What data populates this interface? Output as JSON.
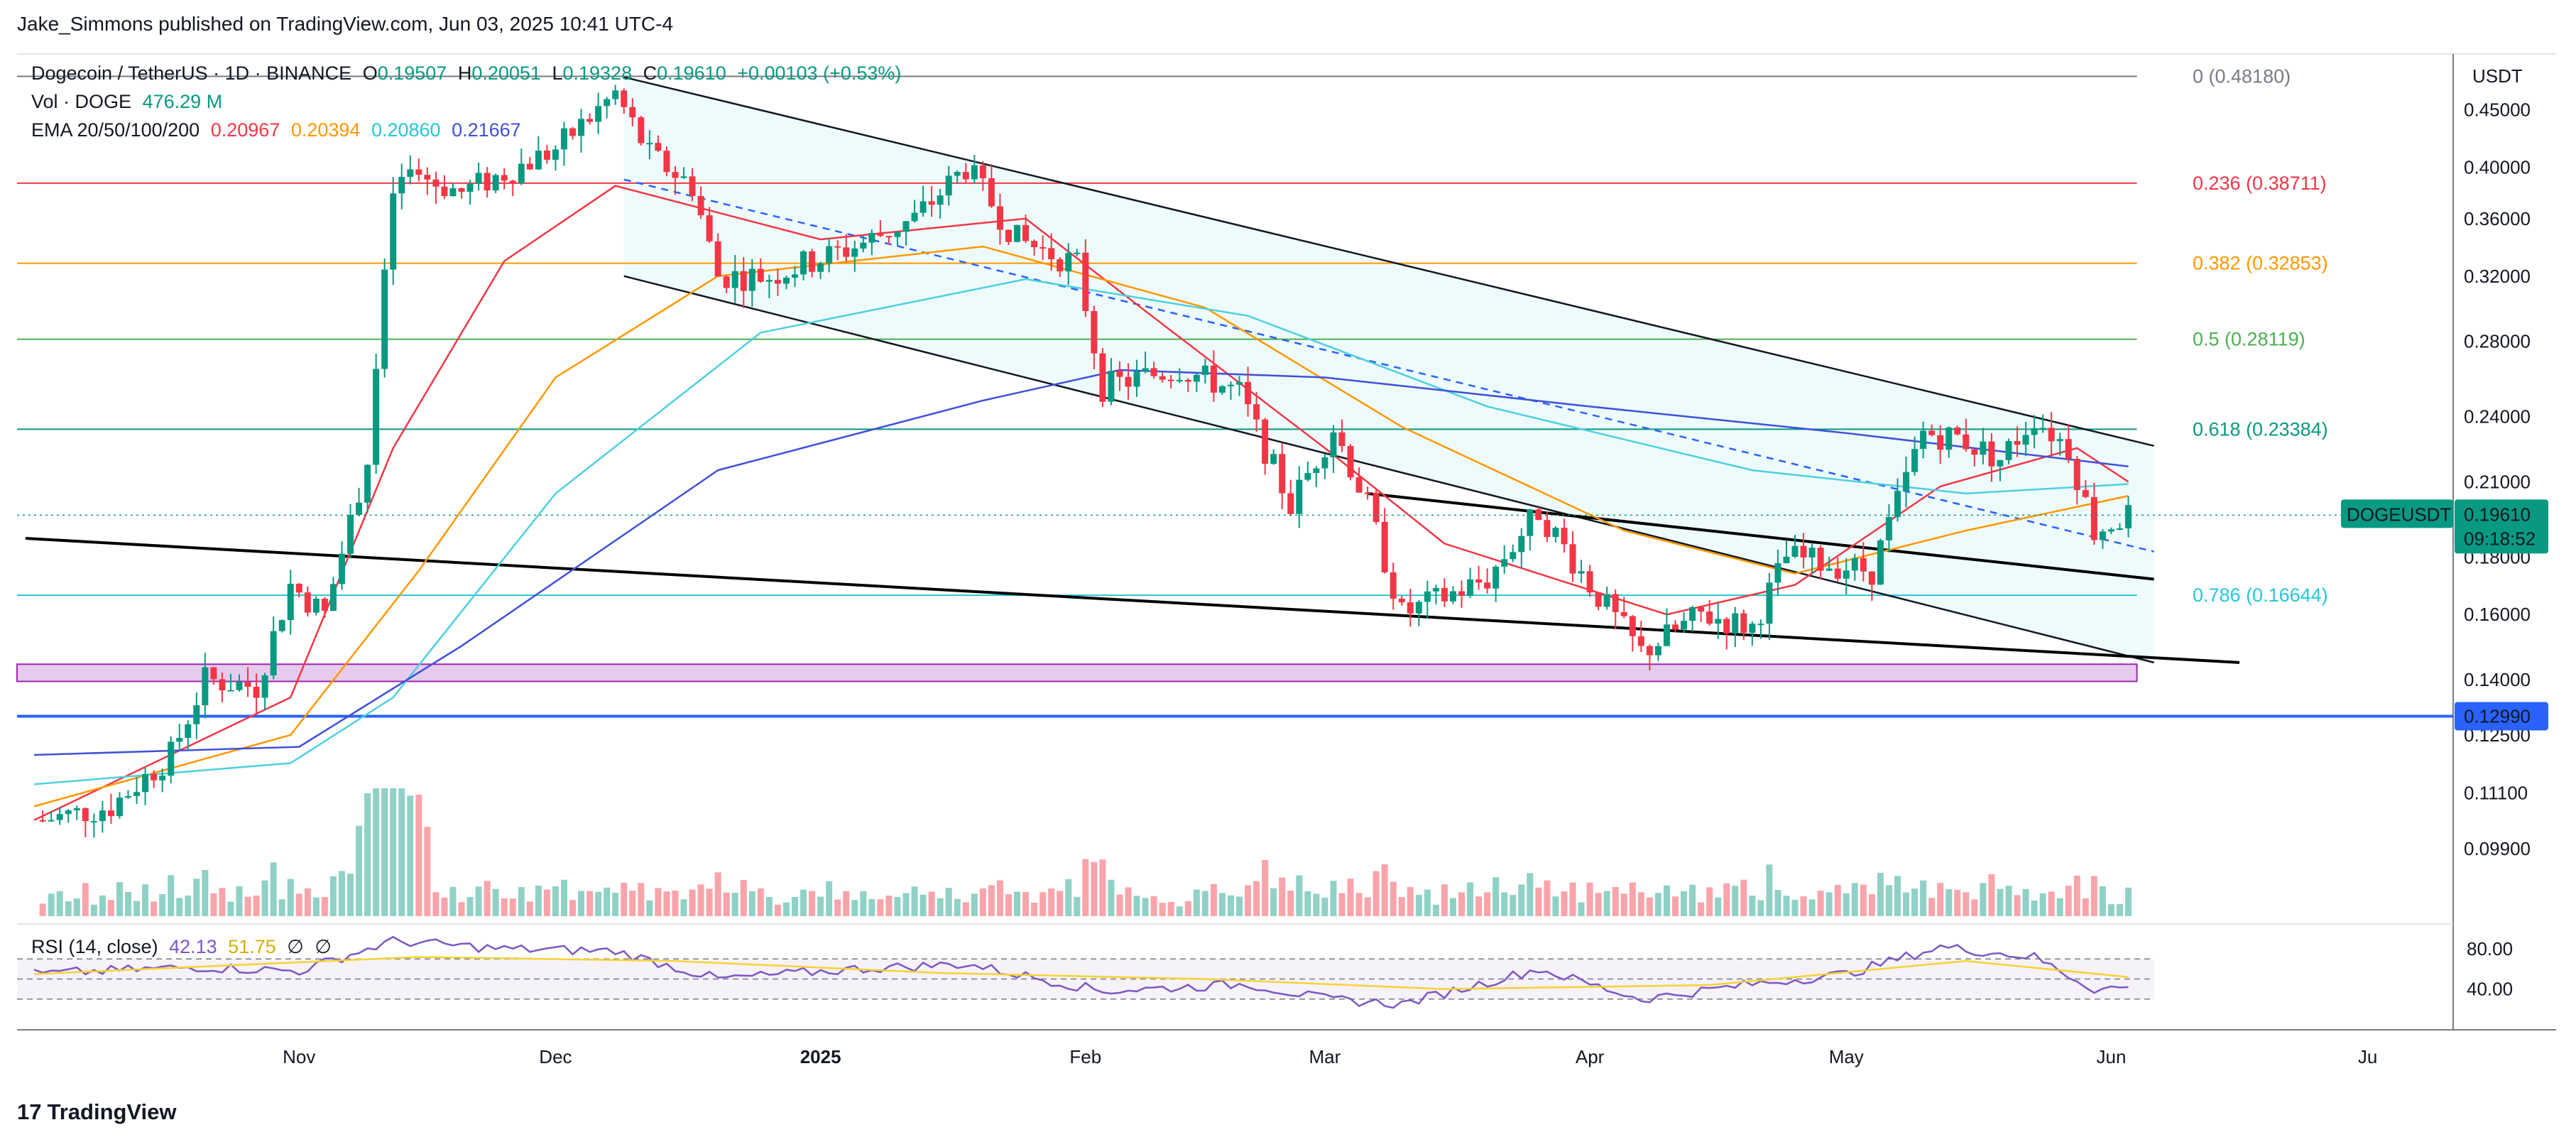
{
  "header": {
    "published": "Jake_Simmons published on TradingView.com, Jun 03, 2025 10:41 UTC-4"
  },
  "legend": {
    "symbol": "Dogecoin / TetherUS · 1D · BINANCE",
    "o_label": "O",
    "o": "0.19507",
    "h_label": "H",
    "h": "0.20051",
    "l_label": "L",
    "l": "0.19328",
    "c_label": "C",
    "c": "0.19610",
    "change": "+0.00103 (+0.53%)",
    "vol_label": "Vol · DOGE",
    "vol": "476.29 M",
    "ema_label": "EMA 20/50/100/200",
    "ema20": "0.20967",
    "ema50": "0.20394",
    "ema100": "0.20860",
    "ema200": "0.21667",
    "rsi_label": "RSI (14, close)",
    "rsi_value": "42.13",
    "rsi_ma": "51.75",
    "rsi_x1": "∅",
    "rsi_x2": "∅"
  },
  "currency": "USDT",
  "colors": {
    "up": "#089981",
    "down": "#f23645",
    "ema20": "#f23645",
    "ema50": "#ff9800",
    "ema100": "#4dd0e1",
    "ema200": "#3f51d8",
    "fib_0": "#787b86",
    "fib_236": "#f23645",
    "fib_382": "#ff9800",
    "fib_5": "#4caf50",
    "fib_618": "#089981",
    "fib_786": "#26c6da",
    "support": "#2962ff",
    "zone": "#e1bee7",
    "rsi_line": "#7e57c2",
    "rsi_ma": "#f7d234"
  },
  "tag": {
    "symbol": "DOGEUSDT",
    "price": "0.19610",
    "countdown": "09:18:52"
  },
  "support_tag": "0.12990",
  "footer": {
    "brand": "TradingView",
    "logo": "17"
  },
  "chart_data": {
    "type": "candlestick",
    "scale": "log",
    "ylim": [
      0.085,
      0.5
    ],
    "y_ticks": [
      "0.45000",
      "0.40000",
      "0.36000",
      "0.32000",
      "0.28000",
      "0.24000",
      "0.21000",
      "0.18000",
      "0.16000",
      "0.14000",
      "0.12500",
      "0.11100",
      "0.09900"
    ],
    "x_ticks": [
      "Nov",
      "Dec",
      "2025",
      "Feb",
      "Mar",
      "Apr",
      "May",
      "Jun",
      "Ju"
    ],
    "rsi_ticks": [
      "80.00",
      "40.00"
    ],
    "fib_levels": [
      {
        "label": "0 (0.48180)",
        "value": 0.4818,
        "color": "#787b86"
      },
      {
        "label": "0.236 (0.38711)",
        "value": 0.38711,
        "color": "#f23645"
      },
      {
        "label": "0.382 (0.32853)",
        "value": 0.32853,
        "color": "#ff9800"
      },
      {
        "label": "0.5 (0.28119)",
        "value": 0.28119,
        "color": "#4caf50"
      },
      {
        "label": "0.618 (0.23384)",
        "value": 0.23384,
        "color": "#089981"
      },
      {
        "label": "0.786 (0.16644)",
        "value": 0.16644,
        "color": "#26c6da"
      }
    ],
    "support_level": 0.1299,
    "zone": [
      0.1395,
      0.1445
    ],
    "last_price": 0.1961,
    "anchors": [
      {
        "d": "2024-10-02",
        "p": 0.105
      },
      {
        "d": "2024-10-10",
        "p": 0.108
      },
      {
        "d": "2024-10-17",
        "p": 0.12
      },
      {
        "d": "2024-10-21",
        "p": 0.14
      },
      {
        "d": "2024-10-27",
        "p": 0.138
      },
      {
        "d": "2024-10-31",
        "p": 0.17
      },
      {
        "d": "2024-11-04",
        "p": 0.16
      },
      {
        "d": "2024-11-09",
        "p": 0.22
      },
      {
        "d": "2024-11-12",
        "p": 0.38
      },
      {
        "d": "2024-11-14",
        "p": 0.395
      },
      {
        "d": "2024-11-20",
        "p": 0.38
      },
      {
        "d": "2024-11-25",
        "p": 0.395
      },
      {
        "d": "2024-12-01",
        "p": 0.415
      },
      {
        "d": "2024-12-08",
        "p": 0.465
      },
      {
        "d": "2024-12-12",
        "p": 0.41
      },
      {
        "d": "2024-12-17",
        "p": 0.385
      },
      {
        "d": "2024-12-20",
        "p": 0.32
      },
      {
        "d": "2024-12-26",
        "p": 0.32
      },
      {
        "d": "2025-01-05",
        "p": 0.34
      },
      {
        "d": "2025-01-12",
        "p": 0.36
      },
      {
        "d": "2025-01-18",
        "p": 0.4
      },
      {
        "d": "2025-01-24",
        "p": 0.345
      },
      {
        "d": "2025-01-31",
        "p": 0.328
      },
      {
        "d": "2025-02-03",
        "p": 0.255
      },
      {
        "d": "2025-02-12",
        "p": 0.265
      },
      {
        "d": "2025-02-19",
        "p": 0.252
      },
      {
        "d": "2025-02-25",
        "p": 0.2
      },
      {
        "d": "2025-03-02",
        "p": 0.235
      },
      {
        "d": "2025-03-06",
        "p": 0.2
      },
      {
        "d": "2025-03-10",
        "p": 0.16
      },
      {
        "d": "2025-03-20",
        "p": 0.172
      },
      {
        "d": "2025-03-26",
        "p": 0.198
      },
      {
        "d": "2025-04-01",
        "p": 0.17
      },
      {
        "d": "2025-04-07",
        "p": 0.148
      },
      {
        "d": "2025-04-14",
        "p": 0.16
      },
      {
        "d": "2025-04-20",
        "p": 0.156
      },
      {
        "d": "2025-04-24",
        "p": 0.18
      },
      {
        "d": "2025-05-04",
        "p": 0.175
      },
      {
        "d": "2025-05-10",
        "p": 0.232
      },
      {
        "d": "2025-05-14",
        "p": 0.23
      },
      {
        "d": "2025-05-19",
        "p": 0.22
      },
      {
        "d": "2025-05-23",
        "p": 0.24
      },
      {
        "d": "2025-05-27",
        "p": 0.225
      },
      {
        "d": "2025-05-30",
        "p": 0.19
      },
      {
        "d": "2025-06-03",
        "p": 0.196
      }
    ],
    "ema_series": [
      {
        "name": "EMA 20",
        "color": "#f23645",
        "points": [
          [
            "2024-10-01",
            0.105
          ],
          [
            "2024-10-31",
            0.135
          ],
          [
            "2024-11-12",
            0.225
          ],
          [
            "2024-11-25",
            0.33
          ],
          [
            "2024-12-08",
            0.385
          ],
          [
            "2025-01-01",
            0.345
          ],
          [
            "2025-01-25",
            0.36
          ],
          [
            "2025-02-10",
            0.29
          ],
          [
            "2025-03-01",
            0.225
          ],
          [
            "2025-03-15",
            0.185
          ],
          [
            "2025-04-10",
            0.16
          ],
          [
            "2025-04-25",
            0.17
          ],
          [
            "2025-05-12",
            0.208
          ],
          [
            "2025-05-28",
            0.225
          ],
          [
            "2025-06-03",
            0.21
          ]
        ]
      },
      {
        "name": "EMA 50",
        "color": "#ff9800",
        "points": [
          [
            "2024-10-01",
            0.108
          ],
          [
            "2024-10-31",
            0.125
          ],
          [
            "2024-11-15",
            0.175
          ],
          [
            "2024-12-01",
            0.26
          ],
          [
            "2024-12-20",
            0.32
          ],
          [
            "2025-01-20",
            0.34
          ],
          [
            "2025-02-15",
            0.3
          ],
          [
            "2025-03-10",
            0.235
          ],
          [
            "2025-04-05",
            0.19
          ],
          [
            "2025-04-25",
            0.174
          ],
          [
            "2025-05-15",
            0.19
          ],
          [
            "2025-06-03",
            0.204
          ]
        ]
      },
      {
        "name": "EMA 100",
        "color": "#4dd0e1",
        "points": [
          [
            "2024-10-01",
            0.113
          ],
          [
            "2024-10-31",
            0.118
          ],
          [
            "2024-11-12",
            0.135
          ],
          [
            "2024-12-01",
            0.205
          ],
          [
            "2024-12-25",
            0.285
          ],
          [
            "2025-01-25",
            0.318
          ],
          [
            "2025-02-20",
            0.295
          ],
          [
            "2025-03-20",
            0.245
          ],
          [
            "2025-04-20",
            0.215
          ],
          [
            "2025-05-15",
            0.205
          ],
          [
            "2025-06-03",
            0.209
          ]
        ]
      },
      {
        "name": "EMA 200",
        "color": "#3f51d8",
        "points": [
          [
            "2024-10-01",
            0.12
          ],
          [
            "2024-11-01",
            0.122
          ],
          [
            "2024-11-20",
            0.15
          ],
          [
            "2024-12-20",
            0.215
          ],
          [
            "2025-01-20",
            0.248
          ],
          [
            "2025-02-05",
            0.264
          ],
          [
            "2025-03-01",
            0.26
          ],
          [
            "2025-04-01",
            0.245
          ],
          [
            "2025-05-01",
            0.232
          ],
          [
            "2025-06-03",
            0.2167
          ]
        ]
      }
    ],
    "trendlines": [
      {
        "from": [
          "2024-12-09",
          0.481
        ],
        "to": [
          "2025-06-06",
          0.226
        ],
        "style": "solid",
        "color": "#131722"
      },
      {
        "from": [
          "2024-12-09",
          0.32
        ],
        "to": [
          "2025-06-06",
          0.145
        ],
        "style": "solid",
        "color": "#131722"
      },
      {
        "from": [
          "2024-12-09",
          0.39
        ],
        "to": [
          "2025-06-06",
          0.182
        ],
        "style": "dashed",
        "color": "#2962ff"
      },
      {
        "from": [
          "2024-09-30",
          0.187
        ],
        "to": [
          "2025-06-16",
          0.145
        ],
        "style": "solid",
        "color": "#000000"
      },
      {
        "from": [
          "2025-03-06",
          0.205
        ],
        "to": [
          "2025-06-06",
          0.172
        ],
        "style": "solid",
        "color": "#000000"
      }
    ],
    "rsi": [
      [
        "2024-10-01",
        55
      ],
      [
        "2024-10-20",
        62
      ],
      [
        "2024-11-01",
        58
      ],
      [
        "2024-11-12",
        88
      ],
      [
        "2024-11-25",
        80
      ],
      [
        "2024-12-08",
        78
      ],
      [
        "2024-12-20",
        50
      ],
      [
        "2025-01-05",
        60
      ],
      [
        "2025-01-18",
        65
      ],
      [
        "2025-02-03",
        38
      ],
      [
        "2025-02-20",
        45
      ],
      [
        "2025-03-01",
        30
      ],
      [
        "2025-03-10",
        25
      ],
      [
        "2025-03-26",
        60
      ],
      [
        "2025-04-07",
        30
      ],
      [
        "2025-04-20",
        45
      ],
      [
        "2025-05-01",
        55
      ],
      [
        "2025-05-12",
        82
      ],
      [
        "2025-05-23",
        72
      ],
      [
        "2025-05-30",
        40
      ],
      [
        "2025-06-03",
        42
      ]
    ],
    "rsi_ma": [
      [
        "2024-10-01",
        55
      ],
      [
        "2024-11-15",
        72
      ],
      [
        "2024-12-15",
        68
      ],
      [
        "2025-01-15",
        56
      ],
      [
        "2025-02-15",
        50
      ],
      [
        "2025-03-15",
        40
      ],
      [
        "2025-04-15",
        44
      ],
      [
        "2025-05-15",
        68
      ],
      [
        "2025-06-03",
        52
      ]
    ]
  }
}
